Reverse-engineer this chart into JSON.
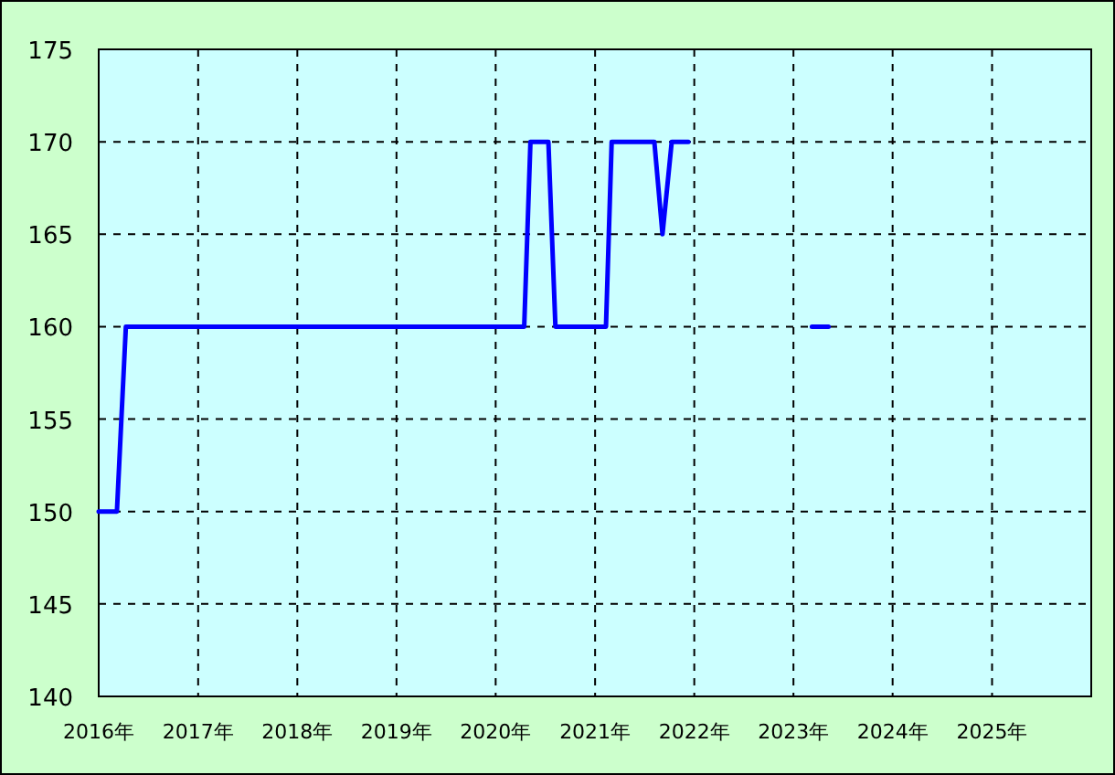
{
  "chart_data": {
    "type": "line",
    "series": [
      {
        "color": "#0000ff",
        "x": [
          "2016-01-01",
          "2016-03-08",
          "2016-04-10",
          "2020-04-15",
          "2020-05-08",
          "2020-07-13",
          "2020-08-08",
          "2021-02-10",
          "2021-03-03",
          "2021-08-07",
          "2021-09-06",
          "2021-10-10",
          "2021-12-10"
        ],
        "values": [
          150,
          150,
          160,
          160,
          170,
          170,
          160,
          160,
          170,
          170,
          165,
          170,
          170
        ]
      },
      {
        "color": "#0000ff",
        "x": [
          "2023-03-10",
          "2023-05-10"
        ],
        "values": [
          160,
          160
        ]
      }
    ],
    "xlim": [
      "2016-01-01",
      "2026-01-01"
    ],
    "xticks": [
      {
        "value": "2016-01-01",
        "label": "2016年"
      },
      {
        "value": "2017-01-01",
        "label": "2017年"
      },
      {
        "value": "2018-01-01",
        "label": "2018年"
      },
      {
        "value": "2019-01-01",
        "label": "2019年"
      },
      {
        "value": "2020-01-01",
        "label": "2020年"
      },
      {
        "value": "2021-01-01",
        "label": "2021年"
      },
      {
        "value": "2022-01-01",
        "label": "2022年"
      },
      {
        "value": "2023-01-01",
        "label": "2023年"
      },
      {
        "value": "2024-01-01",
        "label": "2024年"
      },
      {
        "value": "2025-01-01",
        "label": "2025年"
      }
    ],
    "ylim": [
      140,
      175
    ],
    "yticks": [
      140,
      145,
      150,
      155,
      160,
      165,
      170,
      175
    ],
    "grid": true,
    "line_style": "solid",
    "marker": "none"
  }
}
